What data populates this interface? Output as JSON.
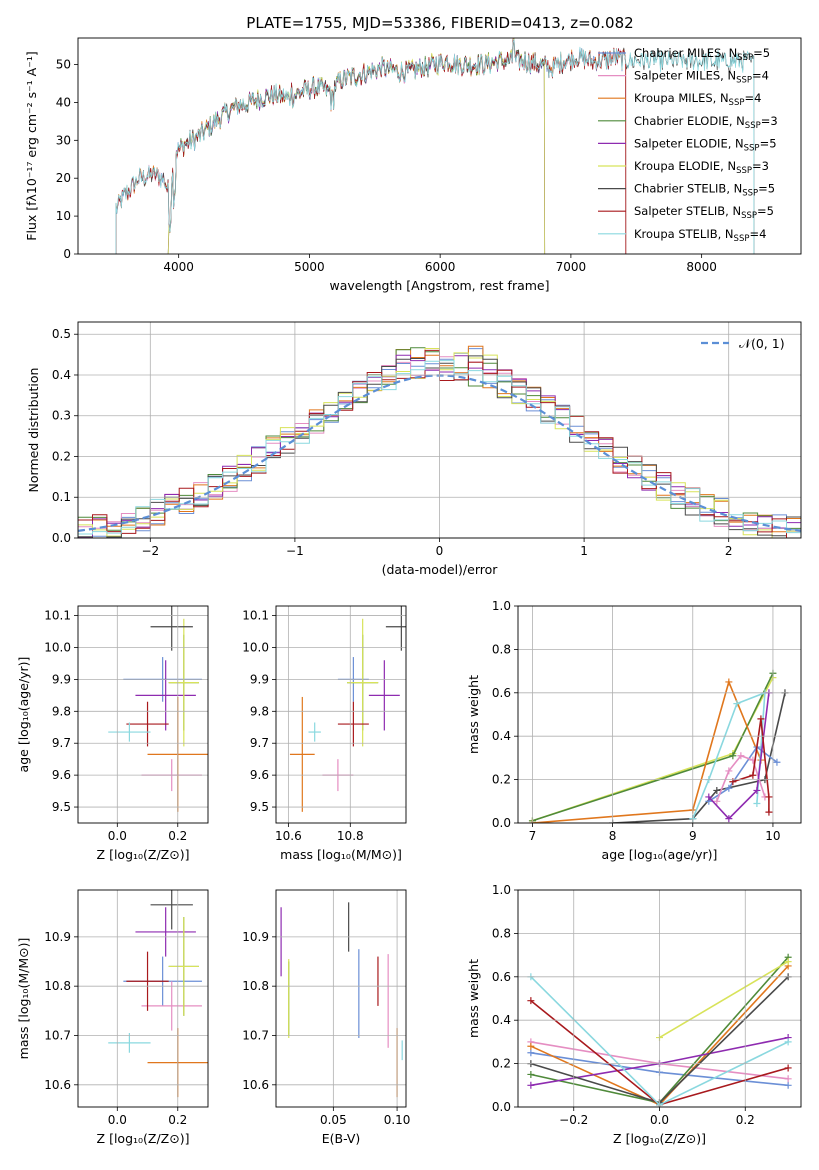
{
  "title": "PLATE=1755, MJD=53386, FIBERID=0413, z=0.082",
  "colors": {
    "Chabrier MILES": "#6b8fd6",
    "Salpeter MILES": "#e58ec2",
    "Kroupa MILES": "#e0771d",
    "Chabrier ELODIE": "#4f8a3a",
    "Salpeter ELODIE": "#8e2bb0",
    "Kroupa ELODIE": "#d8e35a",
    "Chabrier STELIB": "#4a4a4a",
    "Salpeter STELIB": "#a8191d",
    "Kroupa STELIB": "#8ad8df"
  },
  "chart_data": [
    {
      "name": "spectrum",
      "type": "line",
      "xlabel": "wavelength [Angstrom, rest frame]",
      "ylabel": "Flux [fλ10⁻¹⁷ erg cm⁻² s⁻¹ A⁻¹]",
      "xlim": [
        3230,
        8760
      ],
      "ylim": [
        0,
        57
      ],
      "xticks": [
        "4000",
        "5000",
        "6000",
        "7000",
        "8000"
      ],
      "yticks": [
        "0",
        "10",
        "20",
        "30",
        "40",
        "50"
      ],
      "legend_position": "top-right",
      "legend": [
        {
          "label": "Chabrier MILES, N",
          "sub": "SSP",
          "n": "=5",
          "model": "Chabrier MILES"
        },
        {
          "label": "Salpeter MILES, N",
          "sub": "SSP",
          "n": "=4",
          "model": "Salpeter MILES"
        },
        {
          "label": "Kroupa MILES, N",
          "sub": "SSP",
          "n": "=4",
          "model": "Kroupa MILES"
        },
        {
          "label": "Chabrier ELODIE, N",
          "sub": "SSP",
          "n": "=3",
          "model": "Chabrier ELODIE"
        },
        {
          "label": "Salpeter ELODIE, N",
          "sub": "SSP",
          "n": "=5",
          "model": "Salpeter ELODIE"
        },
        {
          "label": "Kroupa ELODIE, N",
          "sub": "SSP",
          "n": "=3",
          "model": "Kroupa ELODIE"
        },
        {
          "label": "Chabrier STELIB, N",
          "sub": "SSP",
          "n": "=5",
          "model": "Chabrier STELIB"
        },
        {
          "label": "Salpeter STELIB, N",
          "sub": "SSP",
          "n": "=5",
          "model": "Salpeter STELIB"
        },
        {
          "label": "Kroupa STELIB, N",
          "sub": "SSP",
          "n": "=4",
          "model": "Kroupa STELIB"
        }
      ],
      "continuum": [
        [
          3520,
          12
        ],
        [
          3600,
          16
        ],
        [
          3700,
          20
        ],
        [
          3800,
          21
        ],
        [
          3880,
          20
        ],
        [
          3930,
          16
        ],
        [
          3980,
          27
        ],
        [
          4050,
          29
        ],
        [
          4150,
          31
        ],
        [
          4250,
          34
        ],
        [
          4350,
          37
        ],
        [
          4450,
          39
        ],
        [
          4550,
          40
        ],
        [
          4650,
          41.5
        ],
        [
          4750,
          42
        ],
        [
          4850,
          41
        ],
        [
          4950,
          43
        ],
        [
          5050,
          44
        ],
        [
          5150,
          43
        ],
        [
          5250,
          46
        ],
        [
          5350,
          47
        ],
        [
          5450,
          48
        ],
        [
          5550,
          49
        ],
        [
          5650,
          48.5
        ],
        [
          5750,
          48
        ],
        [
          5850,
          49
        ],
        [
          5950,
          50
        ],
        [
          6050,
          51
        ],
        [
          6150,
          50
        ],
        [
          6250,
          50
        ],
        [
          6350,
          50
        ],
        [
          6450,
          51
        ],
        [
          6550,
          51
        ],
        [
          6650,
          51
        ],
        [
          6750,
          50
        ],
        [
          6850,
          49
        ],
        [
          6950,
          51
        ],
        [
          7050,
          52
        ],
        [
          7150,
          51
        ],
        [
          7250,
          51
        ],
        [
          7350,
          52
        ],
        [
          7420,
          51
        ]
      ],
      "range_by_model": {
        "Chabrier MILES": [
          3520,
          7420
        ],
        "Salpeter MILES": [
          3520,
          7420
        ],
        "Kroupa MILES": [
          3520,
          7420
        ],
        "Chabrier ELODIE": [
          3920,
          6800
        ],
        "Salpeter ELODIE": [
          3920,
          6800
        ],
        "Kroupa ELODIE": [
          3920,
          6800
        ],
        "Chabrier STELIB": [
          3520,
          8400
        ],
        "Salpeter STELIB": [
          3520,
          7420
        ],
        "Kroupa STELIB": [
          3520,
          8400
        ]
      }
    },
    {
      "name": "residuals",
      "type": "histogram",
      "xlabel": "(data-model)/error",
      "ylabel": "Normed distribution",
      "xlim": [
        -2.5,
        2.5
      ],
      "ylim": [
        0,
        0.53
      ],
      "xticks": [
        "−2",
        "−1",
        "0",
        "1",
        "2"
      ],
      "xtick_values": [
        -2,
        -1,
        0,
        1,
        2
      ],
      "yticks": [
        "0.0",
        "0.1",
        "0.2",
        "0.3",
        "0.4",
        "0.5"
      ],
      "ytick_values": [
        0,
        0.1,
        0.2,
        0.3,
        0.4,
        0.5
      ],
      "grid": true,
      "legend": "𝒩(0, 1)",
      "legend_position": "top-right",
      "bin_width": 0.1,
      "gaussian": {
        "mean": 0,
        "sigma": 1,
        "color": "#5b8fd6"
      }
    },
    {
      "name": "Z-age",
      "type": "errorbar",
      "xlabel": "Z [log₁₀(Z/Z⊙)]",
      "ylabel": "age  [log₁₀(age/yr)]",
      "xlim": [
        -0.13,
        0.3
      ],
      "ylim": [
        9.45,
        10.13
      ],
      "xticks": [
        "0.0",
        "0.2"
      ],
      "xtick_values": [
        0,
        0.2
      ],
      "yticks": [
        "9.5",
        "9.6",
        "9.7",
        "9.8",
        "9.9",
        "10.0",
        "10.1"
      ],
      "ytick_values": [
        9.5,
        9.6,
        9.7,
        9.8,
        9.9,
        10.0,
        10.1
      ],
      "grid": true,
      "points": [
        {
          "model": "Chabrier MILES",
          "x": 0.15,
          "y": 9.9,
          "xerr": 0.13,
          "yerr": 0.07
        },
        {
          "model": "Salpeter MILES",
          "x": 0.18,
          "y": 9.6,
          "xerr": 0.1,
          "yerr": 0.05
        },
        {
          "model": "Kroupa MILES",
          "x": 0.2,
          "y": 9.665,
          "xerr": 0.1,
          "yerr": 0.18
        },
        {
          "model": "Chabrier ELODIE",
          "x": 0.22,
          "y": 9.89,
          "xerr": 0.05,
          "yerr": 0.15
        },
        {
          "model": "Salpeter ELODIE",
          "x": 0.16,
          "y": 9.85,
          "xerr": 0.1,
          "yerr": 0.11
        },
        {
          "model": "Kroupa ELODIE",
          "x": 0.22,
          "y": 9.89,
          "xerr": 0.05,
          "yerr": 0.2
        },
        {
          "model": "Chabrier STELIB",
          "x": 0.18,
          "y": 10.065,
          "xerr": 0.07,
          "yerr": 0.075
        },
        {
          "model": "Salpeter STELIB",
          "x": 0.1,
          "y": 9.76,
          "xerr": 0.07,
          "yerr": 0.07
        },
        {
          "model": "Kroupa STELIB",
          "x": 0.04,
          "y": 9.735,
          "xerr": 0.07,
          "yerr": 0.03
        }
      ]
    },
    {
      "name": "mass-age",
      "type": "errorbar",
      "xlabel": "mass [log₁₀(M/M⊙)]",
      "ylabel": "",
      "xlim": [
        10.56,
        10.98
      ],
      "ylim": [
        9.45,
        10.13
      ],
      "xticks": [
        "10.6",
        "10.8"
      ],
      "xtick_values": [
        10.6,
        10.8
      ],
      "yticks": [
        "9.5",
        "9.6",
        "9.7",
        "9.8",
        "9.9",
        "10.0",
        "10.1"
      ],
      "ytick_values": [
        9.5,
        9.6,
        9.7,
        9.8,
        9.9,
        10.0,
        10.1
      ],
      "grid": true,
      "points": [
        {
          "model": "Chabrier MILES",
          "x": 10.81,
          "y": 9.9,
          "xerr": 0.05,
          "yerr": 0.07
        },
        {
          "model": "Salpeter MILES",
          "x": 10.76,
          "y": 9.6,
          "xerr": 0.05,
          "yerr": 0.05
        },
        {
          "model": "Kroupa MILES",
          "x": 10.645,
          "y": 9.665,
          "xerr": 0.04,
          "yerr": 0.18
        },
        {
          "model": "Chabrier ELODIE",
          "x": 10.84,
          "y": 9.89,
          "xerr": 0.05,
          "yerr": 0.15
        },
        {
          "model": "Salpeter ELODIE",
          "x": 10.91,
          "y": 9.85,
          "xerr": 0.05,
          "yerr": 0.11
        },
        {
          "model": "Kroupa ELODIE",
          "x": 10.84,
          "y": 9.89,
          "xerr": 0.05,
          "yerr": 0.2
        },
        {
          "model": "Chabrier STELIB",
          "x": 10.965,
          "y": 10.065,
          "xerr": 0.05,
          "yerr": 0.075
        },
        {
          "model": "Salpeter STELIB",
          "x": 10.81,
          "y": 9.76,
          "xerr": 0.05,
          "yerr": 0.07
        },
        {
          "model": "Kroupa STELIB",
          "x": 10.685,
          "y": 9.735,
          "xerr": 0.02,
          "yerr": 0.03
        }
      ]
    },
    {
      "name": "age-mass-weight",
      "type": "line",
      "xlabel": "age  [log₁₀(age/yr)]",
      "ylabel": "mass weight",
      "xlim": [
        6.82,
        10.35
      ],
      "ylim": [
        0,
        1
      ],
      "xticks": [
        "7",
        "8",
        "9",
        "10"
      ],
      "xtick_values": [
        7,
        8,
        9,
        10
      ],
      "yticks": [
        "0.0",
        "0.2",
        "0.4",
        "0.6",
        "0.8",
        "1.0"
      ],
      "ytick_values": [
        0,
        0.2,
        0.4,
        0.6,
        0.8,
        1.0
      ],
      "grid": true,
      "series": [
        {
          "model": "Kroupa ELODIE",
          "x": [
            7.0,
            9.5,
            10.0
          ],
          "y": [
            0.01,
            0.32,
            0.67
          ]
        },
        {
          "model": "Chabrier ELODIE",
          "x": [
            7.0,
            9.5,
            10.0
          ],
          "y": [
            0.01,
            0.31,
            0.69
          ]
        },
        {
          "model": "Kroupa MILES",
          "x": [
            7.0,
            9.0,
            9.45,
            9.85
          ],
          "y": [
            0.0,
            0.06,
            0.65,
            0.29
          ]
        },
        {
          "model": "Chabrier STELIB",
          "x": [
            8.0,
            9.0,
            9.3,
            9.9,
            10.15
          ],
          "y": [
            0.0,
            0.02,
            0.15,
            0.2,
            0.6
          ]
        },
        {
          "model": "Kroupa STELIB",
          "x": [
            9.0,
            9.2,
            9.55,
            9.9,
            9.8
          ],
          "y": [
            0.02,
            0.2,
            0.55,
            0.6,
            0.09
          ]
        },
        {
          "model": "Chabrier MILES",
          "x": [
            9.2,
            9.45,
            9.8,
            10.05
          ],
          "y": [
            0.1,
            0.16,
            0.35,
            0.28
          ]
        },
        {
          "model": "Salpeter MILES",
          "x": [
            9.3,
            9.45,
            9.6,
            9.75,
            9.9
          ],
          "y": [
            0.1,
            0.24,
            0.31,
            0.29,
            0.12
          ]
        },
        {
          "model": "Salpeter ELODIE",
          "x": [
            9.2,
            9.45,
            9.8,
            9.95
          ],
          "y": [
            0.12,
            0.02,
            0.15,
            0.6
          ]
        },
        {
          "model": "Salpeter STELIB",
          "x": [
            9.5,
            9.75,
            9.85,
            9.95,
            9.95
          ],
          "y": [
            0.19,
            0.22,
            0.48,
            0.12,
            0.05
          ]
        }
      ]
    },
    {
      "name": "Z-mass",
      "type": "errorbar",
      "xlabel": "Z [log₁₀(Z/Z⊙)]",
      "ylabel": "mass [log₁₀(M/M⊙)]",
      "xlim": [
        -0.13,
        0.3
      ],
      "ylim": [
        10.555,
        10.995
      ],
      "xticks": [
        "0.0",
        "0.2"
      ],
      "xtick_values": [
        0,
        0.2
      ],
      "yticks": [
        "10.6",
        "10.7",
        "10.8",
        "10.9"
      ],
      "ytick_values": [
        10.6,
        10.7,
        10.8,
        10.9
      ],
      "grid": true,
      "points": [
        {
          "model": "Chabrier MILES",
          "x": 0.15,
          "y": 10.81,
          "xerr": 0.13,
          "yerr": 0.05
        },
        {
          "model": "Salpeter MILES",
          "x": 0.18,
          "y": 10.76,
          "xerr": 0.1,
          "yerr": 0.05
        },
        {
          "model": "Kroupa MILES",
          "x": 0.2,
          "y": 10.645,
          "xerr": 0.1,
          "yerr": 0.07
        },
        {
          "model": "Chabrier ELODIE",
          "x": 0.22,
          "y": 10.84,
          "xerr": 0.05,
          "yerr": 0.1
        },
        {
          "model": "Salpeter ELODIE",
          "x": 0.16,
          "y": 10.91,
          "xerr": 0.1,
          "yerr": 0.05
        },
        {
          "model": "Kroupa ELODIE",
          "x": 0.22,
          "y": 10.84,
          "xerr": 0.05,
          "yerr": 0.1
        },
        {
          "model": "Chabrier STELIB",
          "x": 0.18,
          "y": 10.965,
          "xerr": 0.07,
          "yerr": 0.05
        },
        {
          "model": "Salpeter STELIB",
          "x": 0.1,
          "y": 10.81,
          "xerr": 0.07,
          "yerr": 0.06
        },
        {
          "model": "Kroupa STELIB",
          "x": 0.04,
          "y": 10.685,
          "xerr": 0.07,
          "yerr": 0.02
        }
      ]
    },
    {
      "name": "EBV-mass",
      "type": "errorbar",
      "xlabel": "E(B-V)",
      "ylabel": "",
      "xlim": [
        0.005,
        0.107
      ],
      "ylim": [
        10.555,
        10.995
      ],
      "xticks": [
        "0.05",
        "0.10"
      ],
      "xtick_values": [
        0.05,
        0.1
      ],
      "yticks": [
        "10.6",
        "10.7",
        "10.8",
        "10.9"
      ],
      "ytick_values": [
        10.6,
        10.7,
        10.8,
        10.9
      ],
      "grid": true,
      "points": [
        {
          "model": "Chabrier MILES",
          "x": 0.07,
          "y": 10.785,
          "xerr": 0,
          "yerr": 0.09
        },
        {
          "model": "Salpeter MILES",
          "x": 0.093,
          "y": 10.77,
          "xerr": 0,
          "yerr": 0.095
        },
        {
          "model": "Kroupa MILES",
          "x": 0.1,
          "y": 10.645,
          "xerr": 0,
          "yerr": 0.07
        },
        {
          "model": "Chabrier ELODIE",
          "x": 0.015,
          "y": 10.775,
          "xerr": 0,
          "yerr": 0.075
        },
        {
          "model": "Salpeter ELODIE",
          "x": 0.009,
          "y": 10.89,
          "xerr": 0,
          "yerr": 0.07
        },
        {
          "model": "Kroupa ELODIE",
          "x": 0.015,
          "y": 10.775,
          "xerr": 0,
          "yerr": 0.08
        },
        {
          "model": "Chabrier STELIB",
          "x": 0.062,
          "y": 10.92,
          "xerr": 0,
          "yerr": 0.05
        },
        {
          "model": "Salpeter STELIB",
          "x": 0.085,
          "y": 10.81,
          "xerr": 0,
          "yerr": 0.05
        },
        {
          "model": "Kroupa STELIB",
          "x": 0.104,
          "y": 10.67,
          "xerr": 0,
          "yerr": 0.02
        }
      ]
    },
    {
      "name": "Z-mass-weight",
      "type": "line",
      "xlabel": "Z [log₁₀(Z/Z⊙)]",
      "ylabel": "mass weight",
      "xlim": [
        -0.33,
        0.33
      ],
      "ylim": [
        0,
        1
      ],
      "xticks": [
        "−0.2",
        "0.0",
        "0.2"
      ],
      "xtick_values": [
        -0.2,
        0,
        0.2
      ],
      "yticks": [
        "0.0",
        "0.2",
        "0.4",
        "0.6",
        "0.8",
        "1.0"
      ],
      "ytick_values": [
        0,
        0.2,
        0.4,
        0.6,
        0.8,
        1.0
      ],
      "grid": true,
      "series": [
        {
          "model": "Chabrier MILES",
          "x": [
            -0.3,
            0.0,
            0.3
          ],
          "y": [
            0.25,
            0.16,
            0.1
          ]
        },
        {
          "model": "Salpeter MILES",
          "x": [
            -0.3,
            0.0,
            0.3
          ],
          "y": [
            0.3,
            0.2,
            0.13
          ]
        },
        {
          "model": "Kroupa MILES",
          "x": [
            -0.3,
            0.0,
            0.3
          ],
          "y": [
            0.28,
            0.01,
            0.65
          ]
        },
        {
          "model": "Chabrier ELODIE",
          "x": [
            -0.3,
            0.0,
            0.3
          ],
          "y": [
            0.15,
            0.02,
            0.69
          ]
        },
        {
          "model": "Salpeter ELODIE",
          "x": [
            -0.3,
            0.0,
            0.3
          ],
          "y": [
            0.1,
            0.2,
            0.32
          ]
        },
        {
          "model": "Kroupa ELODIE",
          "x": [
            0.0,
            0.3
          ],
          "y": [
            0.32,
            0.67
          ]
        },
        {
          "model": "Chabrier STELIB",
          "x": [
            -0.3,
            0.0,
            0.3
          ],
          "y": [
            0.2,
            0.02,
            0.6
          ]
        },
        {
          "model": "Salpeter STELIB",
          "x": [
            -0.3,
            0.0,
            0.3
          ],
          "y": [
            0.49,
            0.01,
            0.18
          ]
        },
        {
          "model": "Kroupa STELIB",
          "x": [
            -0.3,
            0.0,
            0.3
          ],
          "y": [
            0.6,
            0.01,
            0.3
          ]
        }
      ]
    }
  ]
}
